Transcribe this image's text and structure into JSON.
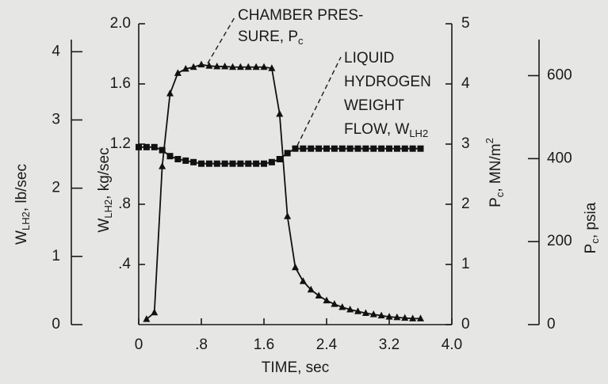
{
  "chart_data": {
    "type": "line",
    "xlabel": "TIME, sec",
    "x": [
      0,
      0.1,
      0.2,
      0.3,
      0.4,
      0.5,
      0.6,
      0.7,
      0.8,
      0.9,
      1.0,
      1.1,
      1.2,
      1.3,
      1.4,
      1.5,
      1.6,
      1.7,
      1.8,
      1.9,
      2.0,
      2.1,
      2.2,
      2.3,
      2.4,
      2.5,
      2.6,
      2.7,
      2.8,
      2.9,
      3.0,
      3.1,
      3.2,
      3.3,
      3.4,
      3.5,
      3.6
    ],
    "xlim": [
      0,
      4
    ],
    "xticks": [
      0,
      {
        "value": 0.8,
        "label": ".8"
      },
      1.6,
      2.4,
      3.2,
      {
        "value": 4,
        "label": "4.0"
      }
    ],
    "ylabel": {
      "main": "W",
      "sub": "LH2",
      "unit": ", kg/sec"
    },
    "ylim": [
      0,
      2
    ],
    "yticks": [
      {
        "value": 0.4,
        "label": ".4"
      },
      {
        "value": 0.8,
        "label": ".8"
      },
      1.2,
      1.6,
      {
        "value": 2,
        "label": "2.0"
      }
    ],
    "y2label": {
      "main": "P",
      "sub": "c",
      "unit": ", MN/m",
      "sup": "2"
    },
    "y2lim": [
      0,
      5
    ],
    "y2ticks": [
      0,
      1,
      2,
      3,
      4,
      5
    ],
    "y3label": {
      "main": "W",
      "sub": "LH2",
      "unit": ", lb/sec"
    },
    "y3lim": [
      0,
      4.41
    ],
    "y3ticks": [
      0,
      1,
      2,
      3,
      4
    ],
    "y4label": {
      "main": "P",
      "sub": "c",
      "unit": ", psia"
    },
    "y4lim": [
      0,
      725
    ],
    "y4ticks": [
      0,
      200,
      400,
      600
    ],
    "series": [
      {
        "axis": "y2",
        "marker": "triangle",
        "color": "#111111",
        "values": [
          null,
          0.09,
          0.2,
          2.63,
          3.84,
          4.18,
          4.25,
          4.28,
          4.32,
          4.3,
          4.29,
          4.29,
          4.28,
          4.28,
          4.28,
          4.28,
          4.28,
          4.26,
          3.5,
          1.8,
          0.95,
          0.72,
          0.58,
          0.48,
          0.4,
          0.34,
          0.29,
          0.25,
          0.22,
          0.19,
          0.17,
          0.15,
          0.13,
          0.12,
          0.11,
          0.1,
          0.1
        ]
      },
      {
        "axis": "y",
        "marker": "square",
        "color": "#111111",
        "values": [
          1.18,
          1.18,
          1.18,
          1.16,
          1.12,
          1.1,
          1.09,
          1.08,
          1.07,
          1.07,
          1.07,
          1.07,
          1.07,
          1.07,
          1.07,
          1.07,
          1.07,
          1.08,
          1.1,
          1.14,
          1.17,
          1.17,
          1.17,
          1.17,
          1.17,
          1.17,
          1.17,
          1.17,
          1.17,
          1.17,
          1.17,
          1.17,
          1.17,
          1.17,
          1.17,
          1.17,
          1.17
        ]
      }
    ],
    "annotations": [
      {
        "lines": [
          "CHAMBER PRES-",
          "SURE, P"
        ],
        "sub": "c"
      },
      {
        "lines": [
          "LIQUID",
          "HYDROGEN",
          "WEIGHT",
          "FLOW, W"
        ],
        "sub": "LH2"
      }
    ]
  }
}
